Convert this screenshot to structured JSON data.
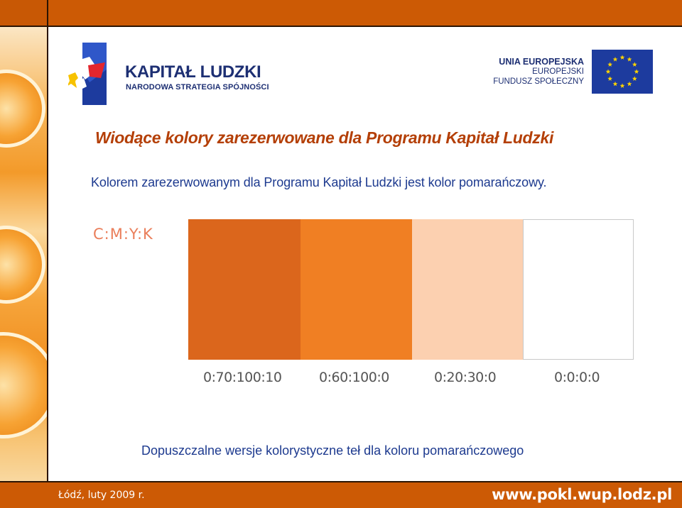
{
  "footer": {
    "date": "Łódź, luty 2009 r.",
    "url": "www.pokl.wup.lodz.pl"
  },
  "logos": {
    "left_title": "KAPITAŁ LUDZKI",
    "left_subtitle": "NARODOWA STRATEGIA SPÓJNOŚCI",
    "right_line1": "UNIA EUROPEJSKA",
    "right_line2": "EUROPEJSKI",
    "right_line3": "FUNDUSZ SPOŁECZNY",
    "eu_flag_icon": "eu-flag-icon",
    "kl_logo_icon": "kapital-ludzki-logo-icon"
  },
  "slide": {
    "heading": "Wiodące kolory zarezerwowane dla Programu Kapitał Ludzki",
    "intro": "Kolorem zarezerwowanym dla Programu Kapitał Ludzki jest kolor pomarańczowy.",
    "caption": "Dopuszczalne wersje kolorystyczne teł dla koloru pomarańczowego"
  },
  "palette": {
    "label": "C:M:Y:K",
    "swatches": [
      {
        "value": "0:70:100:10",
        "color": "#db661c"
      },
      {
        "value": "0:60:100:0",
        "color": "#f07f23"
      },
      {
        "value": "0:20:30:0",
        "color": "#fcd0b0"
      },
      {
        "value": "0:0:0:0",
        "color": "#ffffff"
      }
    ]
  },
  "colors": {
    "frame": "#cc5a05",
    "heading": "#b43f06",
    "body_text": "#1d3a8f",
    "logo_blue": "#1d2f73"
  }
}
